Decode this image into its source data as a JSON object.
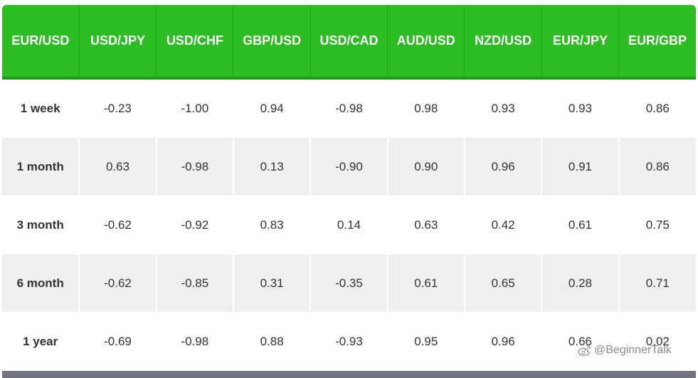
{
  "table": {
    "headers": [
      "EUR/USD",
      "USD/JPY",
      "USD/CHF",
      "GBP/USD",
      "USD/CAD",
      "AUD/USD",
      "NZD/USD",
      "EUR/JPY",
      "EUR/GBP"
    ],
    "rows": [
      {
        "period": "1 week",
        "values": [
          "-0.23",
          "-1.00",
          "0.94",
          "-0.98",
          "0.98",
          "0.93",
          "0.93",
          "0.86"
        ]
      },
      {
        "period": "1 month",
        "values": [
          "0.63",
          "-0.98",
          "0.13",
          "-0.90",
          "0.90",
          "0.96",
          "0.91",
          "0.86"
        ]
      },
      {
        "period": "3 month",
        "values": [
          "-0.62",
          "-0.92",
          "0.83",
          "0.14",
          "0.63",
          "0.42",
          "0.61",
          "0.75"
        ]
      },
      {
        "period": "6 month",
        "values": [
          "-0.62",
          "-0.85",
          "0.31",
          "-0.35",
          "0.61",
          "0.65",
          "0.28",
          "0.71"
        ]
      },
      {
        "period": "1 year",
        "values": [
          "-0.69",
          "-0.98",
          "0.88",
          "-0.93",
          "0.95",
          "0.96",
          "0.66",
          "0.02"
        ]
      }
    ]
  },
  "watermark": {
    "text": "@BeginnerTalk",
    "icon": "weibo-logo-icon"
  },
  "colors": {
    "header_bg": "#2bbd22",
    "row_alt_bg": "#efefef",
    "bottom_bar": "#6f747d"
  }
}
